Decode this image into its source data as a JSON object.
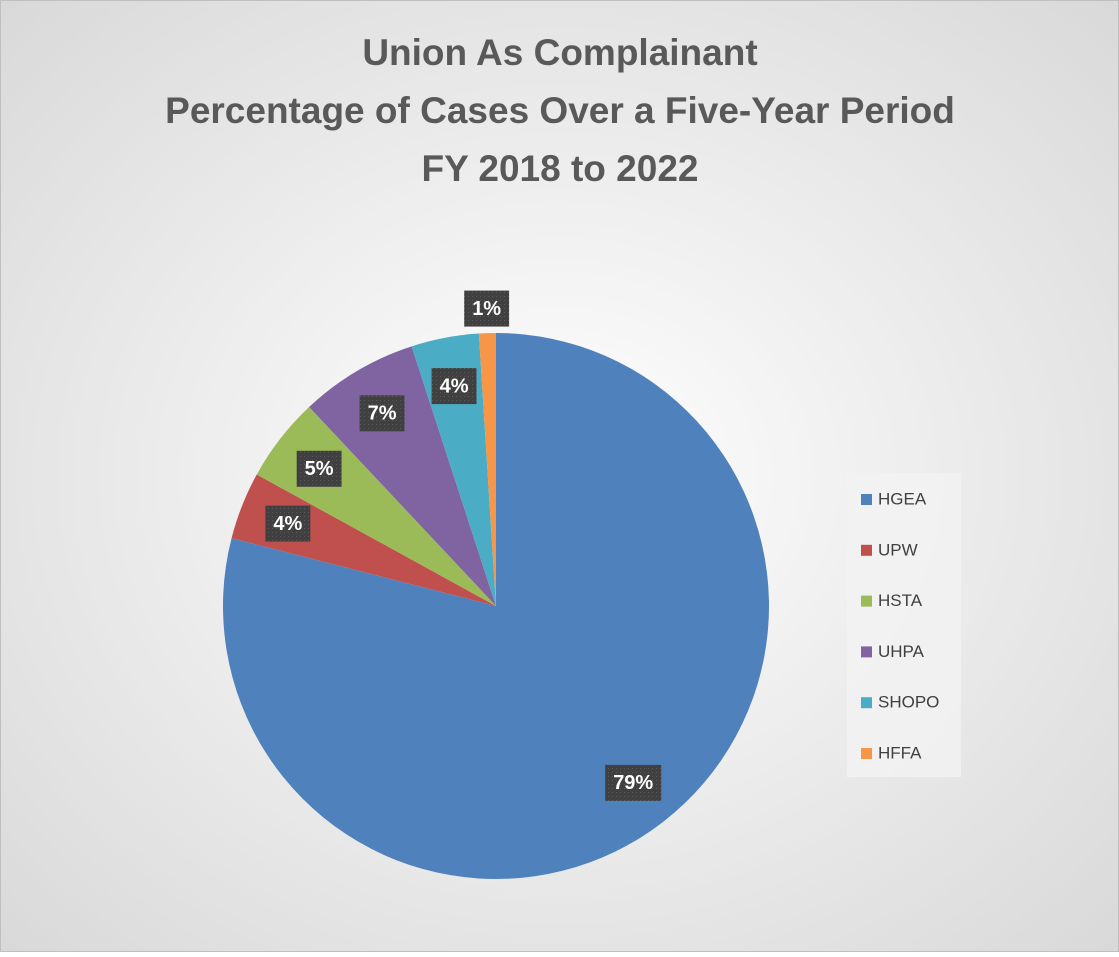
{
  "chart_data": {
    "type": "pie",
    "title": [
      "Union As Complainant",
      "Percentage of Cases Over a Five-Year Period",
      "FY 2018 to 2022"
    ],
    "categories": [
      "HGEA",
      "UPW",
      "HSTA",
      "UHPA",
      "SHOPO",
      "HFFA"
    ],
    "values": [
      79,
      4,
      5,
      7,
      4,
      1
    ],
    "value_labels": [
      "79%",
      "4%",
      "5%",
      "7%",
      "4%",
      "1%"
    ],
    "colors": [
      "#4f81bd",
      "#c0504d",
      "#9bbb59",
      "#8064a2",
      "#4bacc6",
      "#f79646"
    ],
    "legend": "right"
  }
}
